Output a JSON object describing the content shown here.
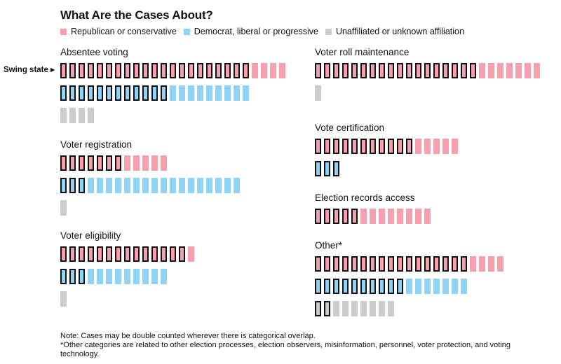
{
  "title": "What Are the Cases About?",
  "legend": [
    {
      "key": "republican",
      "label": "Republican or conservative",
      "color": "#f4a1ad"
    },
    {
      "key": "democrat",
      "label": "Democrat, liberal or progressive",
      "color": "#8fd3f6"
    },
    {
      "key": "unaffiliated",
      "label": "Unaffiliated or unknown affiliation",
      "color": "#cccccc"
    }
  ],
  "swing_label": "Swing state ▸",
  "notes": [
    "Note: Cases may be double counted wherever there is categorical overlap.",
    "*Other categories are related to other election processes, election observers, misinformation, personnel, voter protection, and voting technology."
  ],
  "chart_data": {
    "type": "unit-grid",
    "title": "What Are the Cases About?",
    "encoding": "each block = one case; outlined blocks = cases in a swing state",
    "categories": [
      {
        "name": "Absentee voting",
        "rows": [
          {
            "party": "republican",
            "total": 25,
            "swing": 21
          },
          {
            "party": "democrat",
            "total": 21,
            "swing": 12
          },
          {
            "party": "unaffiliated",
            "total": 4,
            "swing": 0
          }
        ]
      },
      {
        "name": "Voter registration",
        "rows": [
          {
            "party": "republican",
            "total": 12,
            "swing": 7
          },
          {
            "party": "democrat",
            "total": 20,
            "swing": 3
          },
          {
            "party": "unaffiliated",
            "total": 1,
            "swing": 0
          }
        ]
      },
      {
        "name": "Voter eligibility",
        "rows": [
          {
            "party": "republican",
            "total": 15,
            "swing": 14
          },
          {
            "party": "democrat",
            "total": 12,
            "swing": 3
          },
          {
            "party": "unaffiliated",
            "total": 1,
            "swing": 0
          }
        ]
      },
      {
        "name": "Voter roll maintenance",
        "rows": [
          {
            "party": "republican",
            "total": 25,
            "swing": 18
          },
          {
            "party": "unaffiliated",
            "total": 1,
            "swing": 0
          }
        ]
      },
      {
        "name": "Vote certification",
        "rows": [
          {
            "party": "republican",
            "total": 16,
            "swing": 11
          },
          {
            "party": "democrat",
            "total": 3,
            "swing": 3
          }
        ]
      },
      {
        "name": "Election records access",
        "rows": [
          {
            "party": "republican",
            "total": 13,
            "swing": 5
          }
        ]
      },
      {
        "name": "Other*",
        "rows": [
          {
            "party": "republican",
            "total": 21,
            "swing": 17
          },
          {
            "party": "democrat",
            "total": 17,
            "swing": 10
          },
          {
            "party": "unaffiliated",
            "total": 9,
            "swing": 2
          }
        ]
      }
    ]
  }
}
